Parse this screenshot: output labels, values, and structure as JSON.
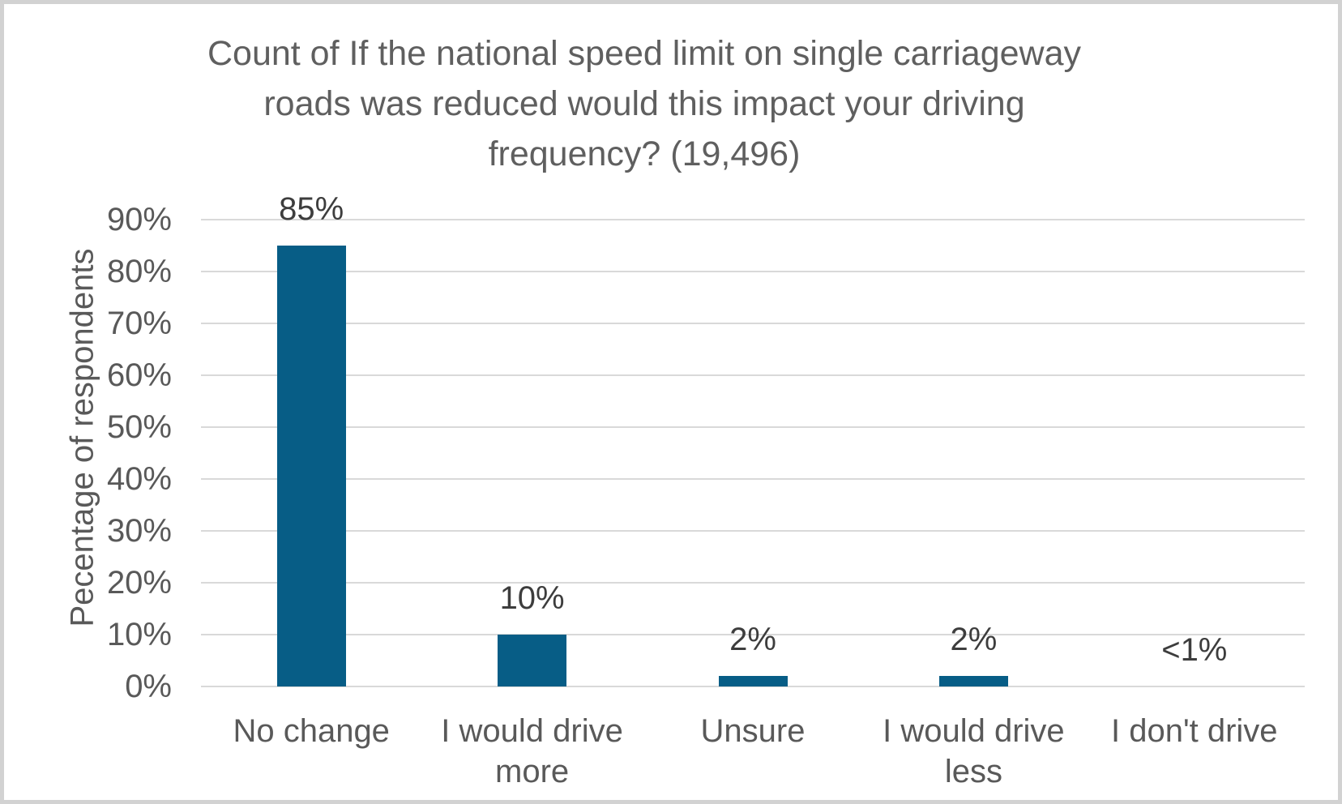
{
  "frame": {
    "background_color": "#ffffff",
    "border_color": "#d2d2d2"
  },
  "chart_data": {
    "type": "bar",
    "title": "Count of If the national speed limit on single carriageway roads was reduced would this impact your driving frequency? (19,496)",
    "title_lines": [
      "Count of If the national speed limit on single carriageway",
      "roads was reduced would this impact your driving",
      "frequency? (19,496)"
    ],
    "ylabel": "Pecentage of respondents",
    "xlabel": "",
    "categories": [
      "No change",
      "I would drive more",
      "Unsure",
      "I would drive less",
      "I don't drive"
    ],
    "values": [
      85,
      10,
      2,
      2,
      0.4
    ],
    "value_labels": [
      "85%",
      "10%",
      "2%",
      "2%",
      "<1%"
    ],
    "yticks": [
      {
        "value": 0,
        "label": "0%"
      },
      {
        "value": 10,
        "label": "10%"
      },
      {
        "value": 20,
        "label": "20%"
      },
      {
        "value": 30,
        "label": "30%"
      },
      {
        "value": 40,
        "label": "40%"
      },
      {
        "value": 50,
        "label": "50%"
      },
      {
        "value": 60,
        "label": "60%"
      },
      {
        "value": 70,
        "label": "70%"
      },
      {
        "value": 80,
        "label": "80%"
      },
      {
        "value": 90,
        "label": "90%"
      }
    ],
    "ylim": [
      0,
      90
    ],
    "grid": true,
    "legend_position": "none",
    "bar_color": "#075d86",
    "gridline_color": "#d9d9d9",
    "title_color": "#5f5f5f",
    "axis_text_color": "#595959",
    "data_label_color": "#3d3d3d"
  }
}
